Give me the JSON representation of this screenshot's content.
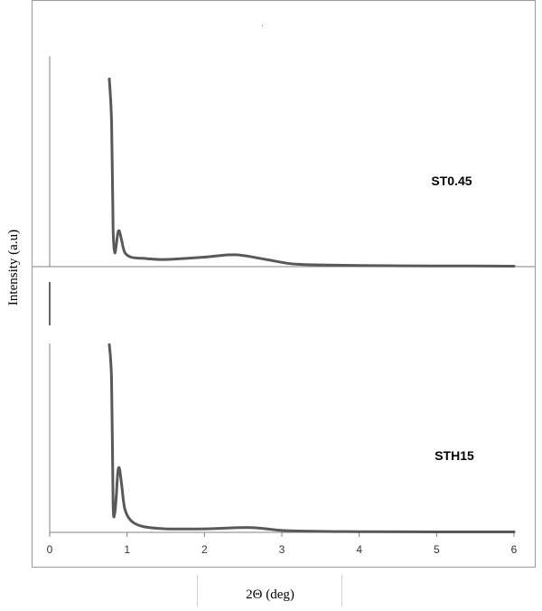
{
  "chart_data": {
    "type": "line",
    "title": "",
    "xlabel": "2Θ (deg)",
    "ylabel": "Intensity (a.u)",
    "xlim": [
      0,
      6
    ],
    "xticks": [
      "0",
      "1",
      "2",
      "3",
      "4",
      "5",
      "6"
    ],
    "grid": false,
    "stacked_offset": true,
    "series": [
      {
        "name": "ST0.45",
        "x": [
          0.77,
          0.8,
          0.82,
          0.84,
          0.86,
          0.88,
          0.9,
          0.93,
          0.97,
          1.05,
          1.2,
          1.5,
          2.0,
          2.4,
          2.8,
          3.2,
          4.0,
          5.0,
          6.0
        ],
        "y": [
          0.79,
          0.61,
          0.16,
          0.06,
          0.09,
          0.14,
          0.15,
          0.11,
          0.06,
          0.04,
          0.035,
          0.03,
          0.04,
          0.05,
          0.03,
          0.01,
          0.005,
          0.003,
          0.002
        ]
      },
      {
        "name": "STH15",
        "x": [
          0.77,
          0.8,
          0.82,
          0.84,
          0.86,
          0.88,
          0.9,
          0.93,
          0.97,
          1.05,
          1.2,
          1.5,
          2.0,
          2.6,
          3.0,
          3.5,
          4.0,
          5.0,
          6.0
        ],
        "y": [
          0.79,
          0.64,
          0.12,
          0.08,
          0.15,
          0.25,
          0.27,
          0.2,
          0.1,
          0.05,
          0.025,
          0.015,
          0.015,
          0.02,
          0.008,
          0.004,
          0.003,
          0.002,
          0.002
        ]
      }
    ],
    "line_color": "#595959",
    "axis_color": "#808080"
  }
}
